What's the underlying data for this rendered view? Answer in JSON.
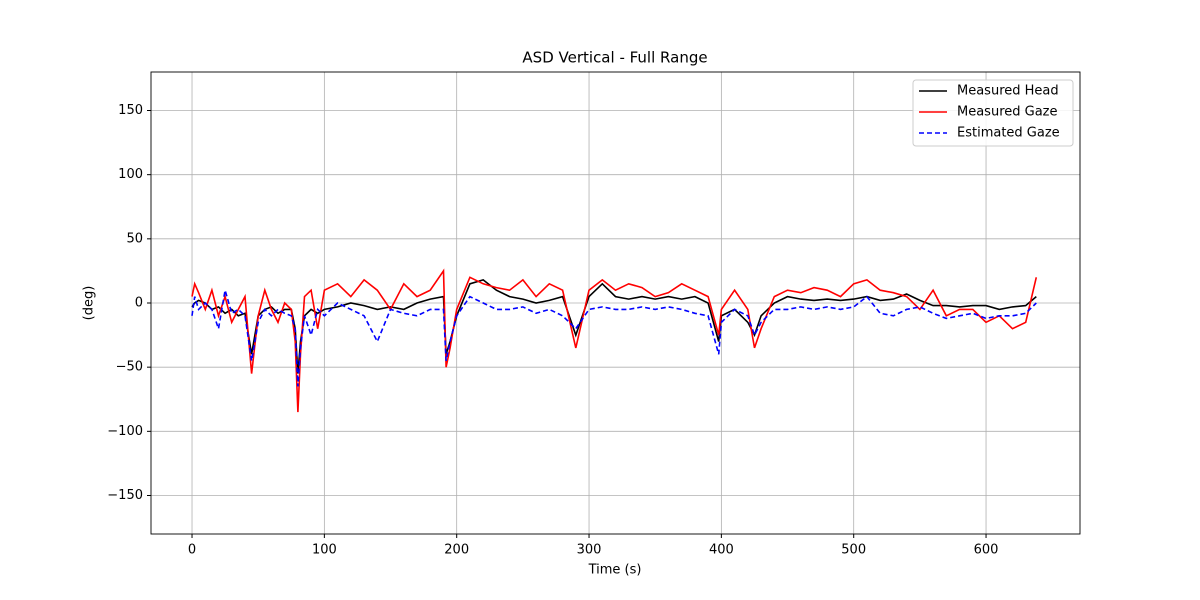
{
  "chart_data": {
    "type": "line",
    "title": "ASD Vertical - Full Range",
    "xlabel": "Time (s)",
    "ylabel": "(deg)",
    "x": [
      0,
      2,
      5,
      10,
      15,
      20,
      25,
      30,
      35,
      40,
      45,
      50,
      55,
      60,
      65,
      70,
      75,
      78,
      80,
      82,
      85,
      90,
      95,
      100,
      110,
      120,
      130,
      140,
      150,
      160,
      170,
      180,
      190,
      192,
      195,
      200,
      210,
      220,
      230,
      240,
      250,
      260,
      270,
      280,
      290,
      300,
      310,
      320,
      330,
      340,
      350,
      360,
      370,
      380,
      390,
      398,
      400,
      410,
      420,
      425,
      430,
      440,
      450,
      460,
      470,
      480,
      490,
      500,
      510,
      520,
      530,
      540,
      550,
      560,
      570,
      580,
      590,
      600,
      610,
      620,
      630,
      638
    ],
    "series": [
      {
        "name": "Measured Head",
        "color": "#000000",
        "dash": false,
        "values": [
          -3,
          0,
          2,
          0,
          -5,
          -3,
          -8,
          -5,
          -10,
          -8,
          -40,
          -10,
          -5,
          -3,
          -8,
          -5,
          -5,
          -20,
          -55,
          -30,
          -10,
          -5,
          -8,
          -5,
          -3,
          0,
          -2,
          -5,
          -3,
          -5,
          0,
          3,
          5,
          -40,
          -30,
          -10,
          15,
          18,
          10,
          5,
          3,
          0,
          2,
          5,
          -25,
          5,
          15,
          5,
          3,
          5,
          3,
          5,
          3,
          5,
          0,
          -30,
          -10,
          -5,
          -15,
          -25,
          -10,
          0,
          5,
          3,
          2,
          3,
          2,
          3,
          5,
          2,
          3,
          7,
          2,
          -2,
          -2,
          -3,
          -2,
          -2,
          -5,
          -3,
          -2,
          5
        ]
      },
      {
        "name": "Measured Gaze",
        "color": "#ff0000",
        "dash": false,
        "values": [
          5,
          15,
          8,
          -5,
          10,
          -10,
          5,
          -15,
          -5,
          5,
          -55,
          -10,
          10,
          -5,
          -15,
          0,
          -5,
          -30,
          -85,
          -40,
          5,
          10,
          -20,
          10,
          15,
          5,
          18,
          10,
          -5,
          15,
          5,
          10,
          25,
          -50,
          -35,
          -5,
          20,
          15,
          12,
          10,
          18,
          5,
          15,
          10,
          -35,
          10,
          18,
          10,
          15,
          12,
          5,
          8,
          15,
          10,
          5,
          -25,
          -5,
          10,
          -5,
          -35,
          -20,
          5,
          10,
          8,
          12,
          10,
          5,
          15,
          18,
          10,
          8,
          5,
          -5,
          10,
          -10,
          -5,
          -5,
          -15,
          -10,
          -20,
          -15,
          20
        ]
      },
      {
        "name": "Estimated Gaze",
        "color": "#0000ff",
        "dash": true,
        "values": [
          -10,
          5,
          -5,
          0,
          -5,
          -20,
          10,
          -8,
          -5,
          -10,
          -45,
          -15,
          -5,
          -10,
          -5,
          -8,
          -10,
          -20,
          -65,
          -35,
          -10,
          -25,
          -5,
          -10,
          0,
          -5,
          -10,
          -30,
          -5,
          -8,
          -10,
          -5,
          -5,
          -45,
          -30,
          -10,
          5,
          0,
          -5,
          -5,
          -3,
          -8,
          -5,
          -10,
          -20,
          -5,
          -3,
          -5,
          -5,
          -3,
          -5,
          -3,
          -5,
          -8,
          -10,
          -40,
          -15,
          -5,
          -10,
          -25,
          -15,
          -5,
          -5,
          -3,
          -5,
          -3,
          -5,
          -3,
          5,
          -8,
          -10,
          -5,
          -3,
          -8,
          -12,
          -10,
          -8,
          -12,
          -10,
          -10,
          -8,
          0
        ]
      }
    ],
    "xlim": [
      -31,
      671
    ],
    "xticks": [
      0,
      100,
      200,
      300,
      400,
      500,
      600
    ],
    "ylim": [
      -180,
      180
    ],
    "yticks": [
      {
        "value": -150,
        "label": "−150"
      },
      {
        "value": -100,
        "label": "−100"
      },
      {
        "value": -50,
        "label": "−50"
      },
      0,
      50,
      100,
      150
    ],
    "grid": true,
    "legend": "upper right"
  }
}
